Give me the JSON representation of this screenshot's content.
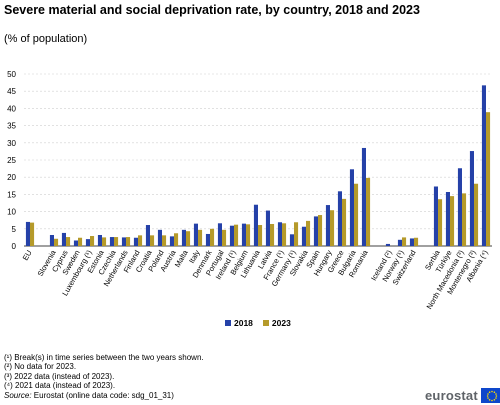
{
  "title": "Severe material and social deprivation rate, by country, 2018 and 2023",
  "subtitle": "(% of population)",
  "notes": [
    "(¹) Break(s) in time series between the two years shown.",
    "(²) No data for 2023.",
    "(³) 2022 data (instead of 2023).",
    "(⁴) 2021 data (instead of 2023)."
  ],
  "source_label": "Source:",
  "source_text": " Eurostat (online data code: sdg_01_31)",
  "logo_text": "eurostat",
  "colors": {
    "2018": "#2541a8",
    "2023": "#b59a2a",
    "grid": "#d0d0d0"
  },
  "chart_data": {
    "type": "bar",
    "ylim": [
      0,
      50
    ],
    "yticks": [
      0,
      5,
      10,
      15,
      20,
      25,
      30,
      35,
      40,
      45,
      50
    ],
    "grid": true,
    "legend_position": "bottom",
    "categories": [
      "EU",
      "",
      "Slovenia",
      "Cyprus",
      "Sweden",
      "Luxembourg (¹)",
      "Estonia",
      "Czechia",
      "Netherlands",
      "Finland",
      "Croatia",
      "Poland",
      "Austria",
      "Malta",
      "Italy",
      "Denmark",
      "Portugal",
      "Ireland (¹)",
      "Belgium",
      "Lithuania",
      "Latvia",
      "France (¹)",
      "Germany (¹)",
      "Slovakia",
      "Spain",
      "Hungary",
      "Greece",
      "Bulgaria",
      "Romania",
      "",
      "Iceland (²)",
      "Norway (¹)",
      "Switzerland",
      "",
      "Serbia",
      "Türkiye",
      "North Macedonia (³)",
      "Montenegro (³)",
      "Albania (⁴)"
    ],
    "series": [
      {
        "name": "2018",
        "values": [
          7.0,
          null,
          3.2,
          3.8,
          1.6,
          2.0,
          3.2,
          2.6,
          2.5,
          2.4,
          6.1,
          4.7,
          2.8,
          4.7,
          6.5,
          3.5,
          6.6,
          5.9,
          6.5,
          12.0,
          10.3,
          6.9,
          3.4,
          5.6,
          8.6,
          11.9,
          15.9,
          22.3,
          28.5,
          null,
          0.6,
          1.8,
          2.2,
          null,
          17.3,
          15.7,
          22.6,
          27.6,
          46.7
        ]
      },
      {
        "name": "2023",
        "values": [
          6.8,
          null,
          2.1,
          2.6,
          2.4,
          2.9,
          2.5,
          2.6,
          2.6,
          3.1,
          3.1,
          3.1,
          3.7,
          4.3,
          4.7,
          5.0,
          4.7,
          6.2,
          6.3,
          6.1,
          6.4,
          6.6,
          6.9,
          7.3,
          9.0,
          10.4,
          13.7,
          18.1,
          19.8,
          null,
          null,
          2.5,
          2.4,
          null,
          13.6,
          14.5,
          15.3,
          18.1,
          38.9
        ]
      }
    ]
  }
}
